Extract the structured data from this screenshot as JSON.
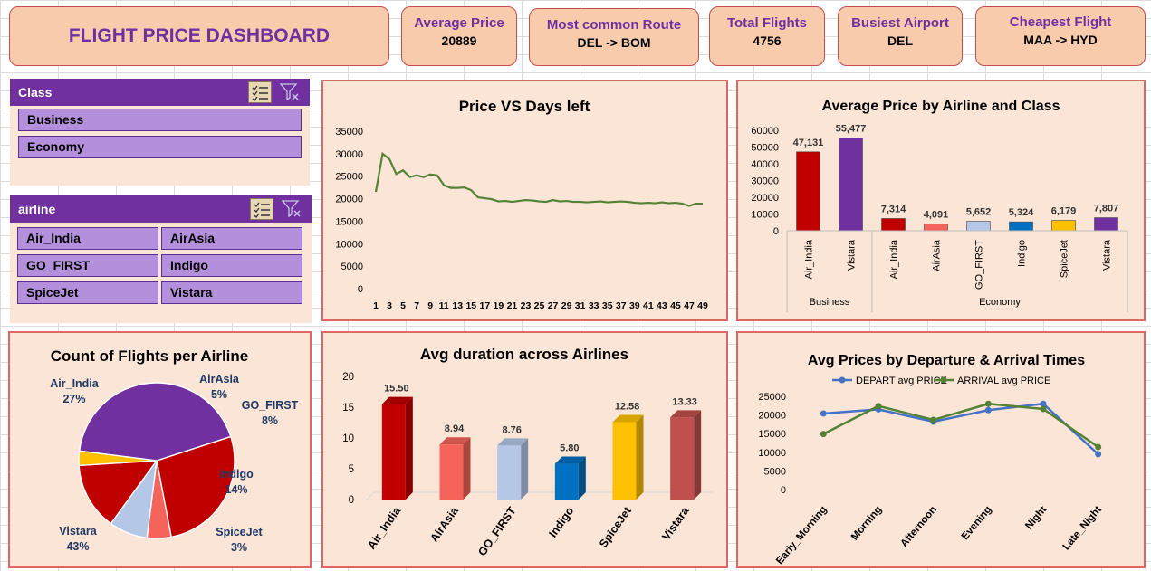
{
  "title": "FLIGHT PRICE DASHBOARD",
  "kpis": [
    {
      "label": "Average Price",
      "value": "20889"
    },
    {
      "label": "Most common Route",
      "value": "DEL -> BOM"
    },
    {
      "label": "Total Flights",
      "value": "4756"
    },
    {
      "label": "Busiest Airport",
      "value": "DEL"
    },
    {
      "label": "Cheapest Flight",
      "value": "MAA -> HYD"
    }
  ],
  "slicers": {
    "class": {
      "header": "Class",
      "items": [
        "Business",
        "Economy"
      ]
    },
    "airline": {
      "header": "airline",
      "items": [
        "Air_India",
        "AirAsia",
        "GO_FIRST",
        "Indigo",
        "SpiceJet",
        "Vistara"
      ]
    }
  },
  "colors": {
    "accent": "#7030a0",
    "line": "#548235",
    "depart": "#4472c4",
    "arrival": "#548235"
  },
  "chart_data": [
    {
      "type": "line",
      "title": "Price VS Days left",
      "x": [
        1,
        2,
        3,
        4,
        5,
        6,
        7,
        8,
        9,
        10,
        11,
        12,
        13,
        14,
        15,
        16,
        17,
        18,
        19,
        20,
        21,
        22,
        23,
        24,
        25,
        26,
        27,
        28,
        29,
        30,
        31,
        32,
        33,
        34,
        35,
        36,
        37,
        38,
        39,
        40,
        41,
        42,
        43,
        44,
        45,
        46,
        47,
        48,
        49
      ],
      "xticks": [
        "1",
        "3",
        "5",
        "7",
        "9",
        "11",
        "13",
        "15",
        "17",
        "19",
        "21",
        "23",
        "25",
        "27",
        "29",
        "31",
        "33",
        "35",
        "37",
        "39",
        "41",
        "43",
        "45",
        "47",
        "49"
      ],
      "y": [
        21500,
        30000,
        28800,
        25500,
        26300,
        24800,
        25200,
        24800,
        25400,
        25200,
        23000,
        22400,
        22400,
        22500,
        21900,
        20300,
        20100,
        19900,
        19400,
        19500,
        19300,
        19500,
        19700,
        19600,
        19400,
        19300,
        19700,
        19400,
        19500,
        19300,
        19300,
        19200,
        19300,
        19400,
        19200,
        19300,
        19400,
        19300,
        19100,
        19000,
        19100,
        19000,
        19200,
        19000,
        19100,
        18900,
        18400,
        18900,
        18900
      ],
      "ylim": [
        0,
        35000
      ],
      "yticks": [
        0,
        5000,
        10000,
        15000,
        20000,
        25000,
        30000,
        35000
      ]
    },
    {
      "type": "bar",
      "title": "Average Price by Airline and Class",
      "groups": [
        {
          "name": "Business",
          "categories": [
            "Air_India",
            "Vistara"
          ],
          "values": [
            47131,
            55477
          ],
          "labels": [
            "47,131",
            "55,477"
          ],
          "colors": [
            "#c00000",
            "#7030a0"
          ]
        },
        {
          "name": "Economy",
          "categories": [
            "Air_India",
            "AirAsia",
            "GO_FIRST",
            "Indigo",
            "SpiceJet",
            "Vistara"
          ],
          "values": [
            7314,
            4091,
            5652,
            5324,
            6179,
            7807
          ],
          "labels": [
            "7,314",
            "4,091",
            "5,652",
            "5,324",
            "6,179",
            "7,807"
          ],
          "colors": [
            "#c00000",
            "#f4645a",
            "#b4c7e7",
            "#0070c0",
            "#ffc000",
            "#7030a0"
          ]
        }
      ],
      "ylim": [
        0,
        60000
      ],
      "yticks": [
        0,
        10000,
        20000,
        30000,
        40000,
        50000,
        60000
      ]
    },
    {
      "type": "pie",
      "title": "Count of Flights per Airline",
      "categories": [
        "Air_India",
        "AirAsia",
        "GO_FIRST",
        "Indigo",
        "SpiceJet",
        "Vistara"
      ],
      "values": [
        27,
        5,
        8,
        14,
        3,
        43
      ],
      "labels": [
        "27%",
        "5%",
        "8%",
        "14%",
        "3%",
        "43%"
      ],
      "colors": [
        "#c00000",
        "#f4645a",
        "#b4c7e7",
        "#c00000",
        "#ffc000",
        "#7030a0"
      ]
    },
    {
      "type": "bar",
      "title": "Avg duration across Airlines",
      "categories": [
        "Air_India",
        "AirAsia",
        "GO_FIRST",
        "Indigo",
        "SpiceJet",
        "Vistara"
      ],
      "values": [
        15.5,
        8.94,
        8.76,
        5.8,
        12.58,
        13.33
      ],
      "labels": [
        "15.50",
        "8.94",
        "8.76",
        "5.80",
        "12.58",
        "13.33"
      ],
      "colors": [
        "#c00000",
        "#f4645a",
        "#b4c7e7",
        "#0070c0",
        "#ffc000",
        "#c0504d"
      ],
      "ylim": [
        0,
        20
      ],
      "yticks": [
        0,
        5,
        10,
        15,
        20
      ]
    },
    {
      "type": "line",
      "title": "Avg Prices by Departure & Arrival Times",
      "categories": [
        "Early_Morning",
        "Morning",
        "Afternoon",
        "Evening",
        "Night",
        "Late_Night"
      ],
      "series": [
        {
          "name": "DEPART avg PRICE",
          "values": [
            20400,
            21500,
            18200,
            21300,
            23000,
            9500
          ],
          "color": "#4472c4"
        },
        {
          "name": "ARRIVAL avg PRICE",
          "values": [
            14900,
            22400,
            18700,
            23000,
            21600,
            11400
          ],
          "color": "#548235"
        }
      ],
      "ylim": [
        0,
        25000
      ],
      "yticks": [
        0,
        5000,
        10000,
        15000,
        20000,
        25000
      ],
      "legend": "top"
    }
  ]
}
